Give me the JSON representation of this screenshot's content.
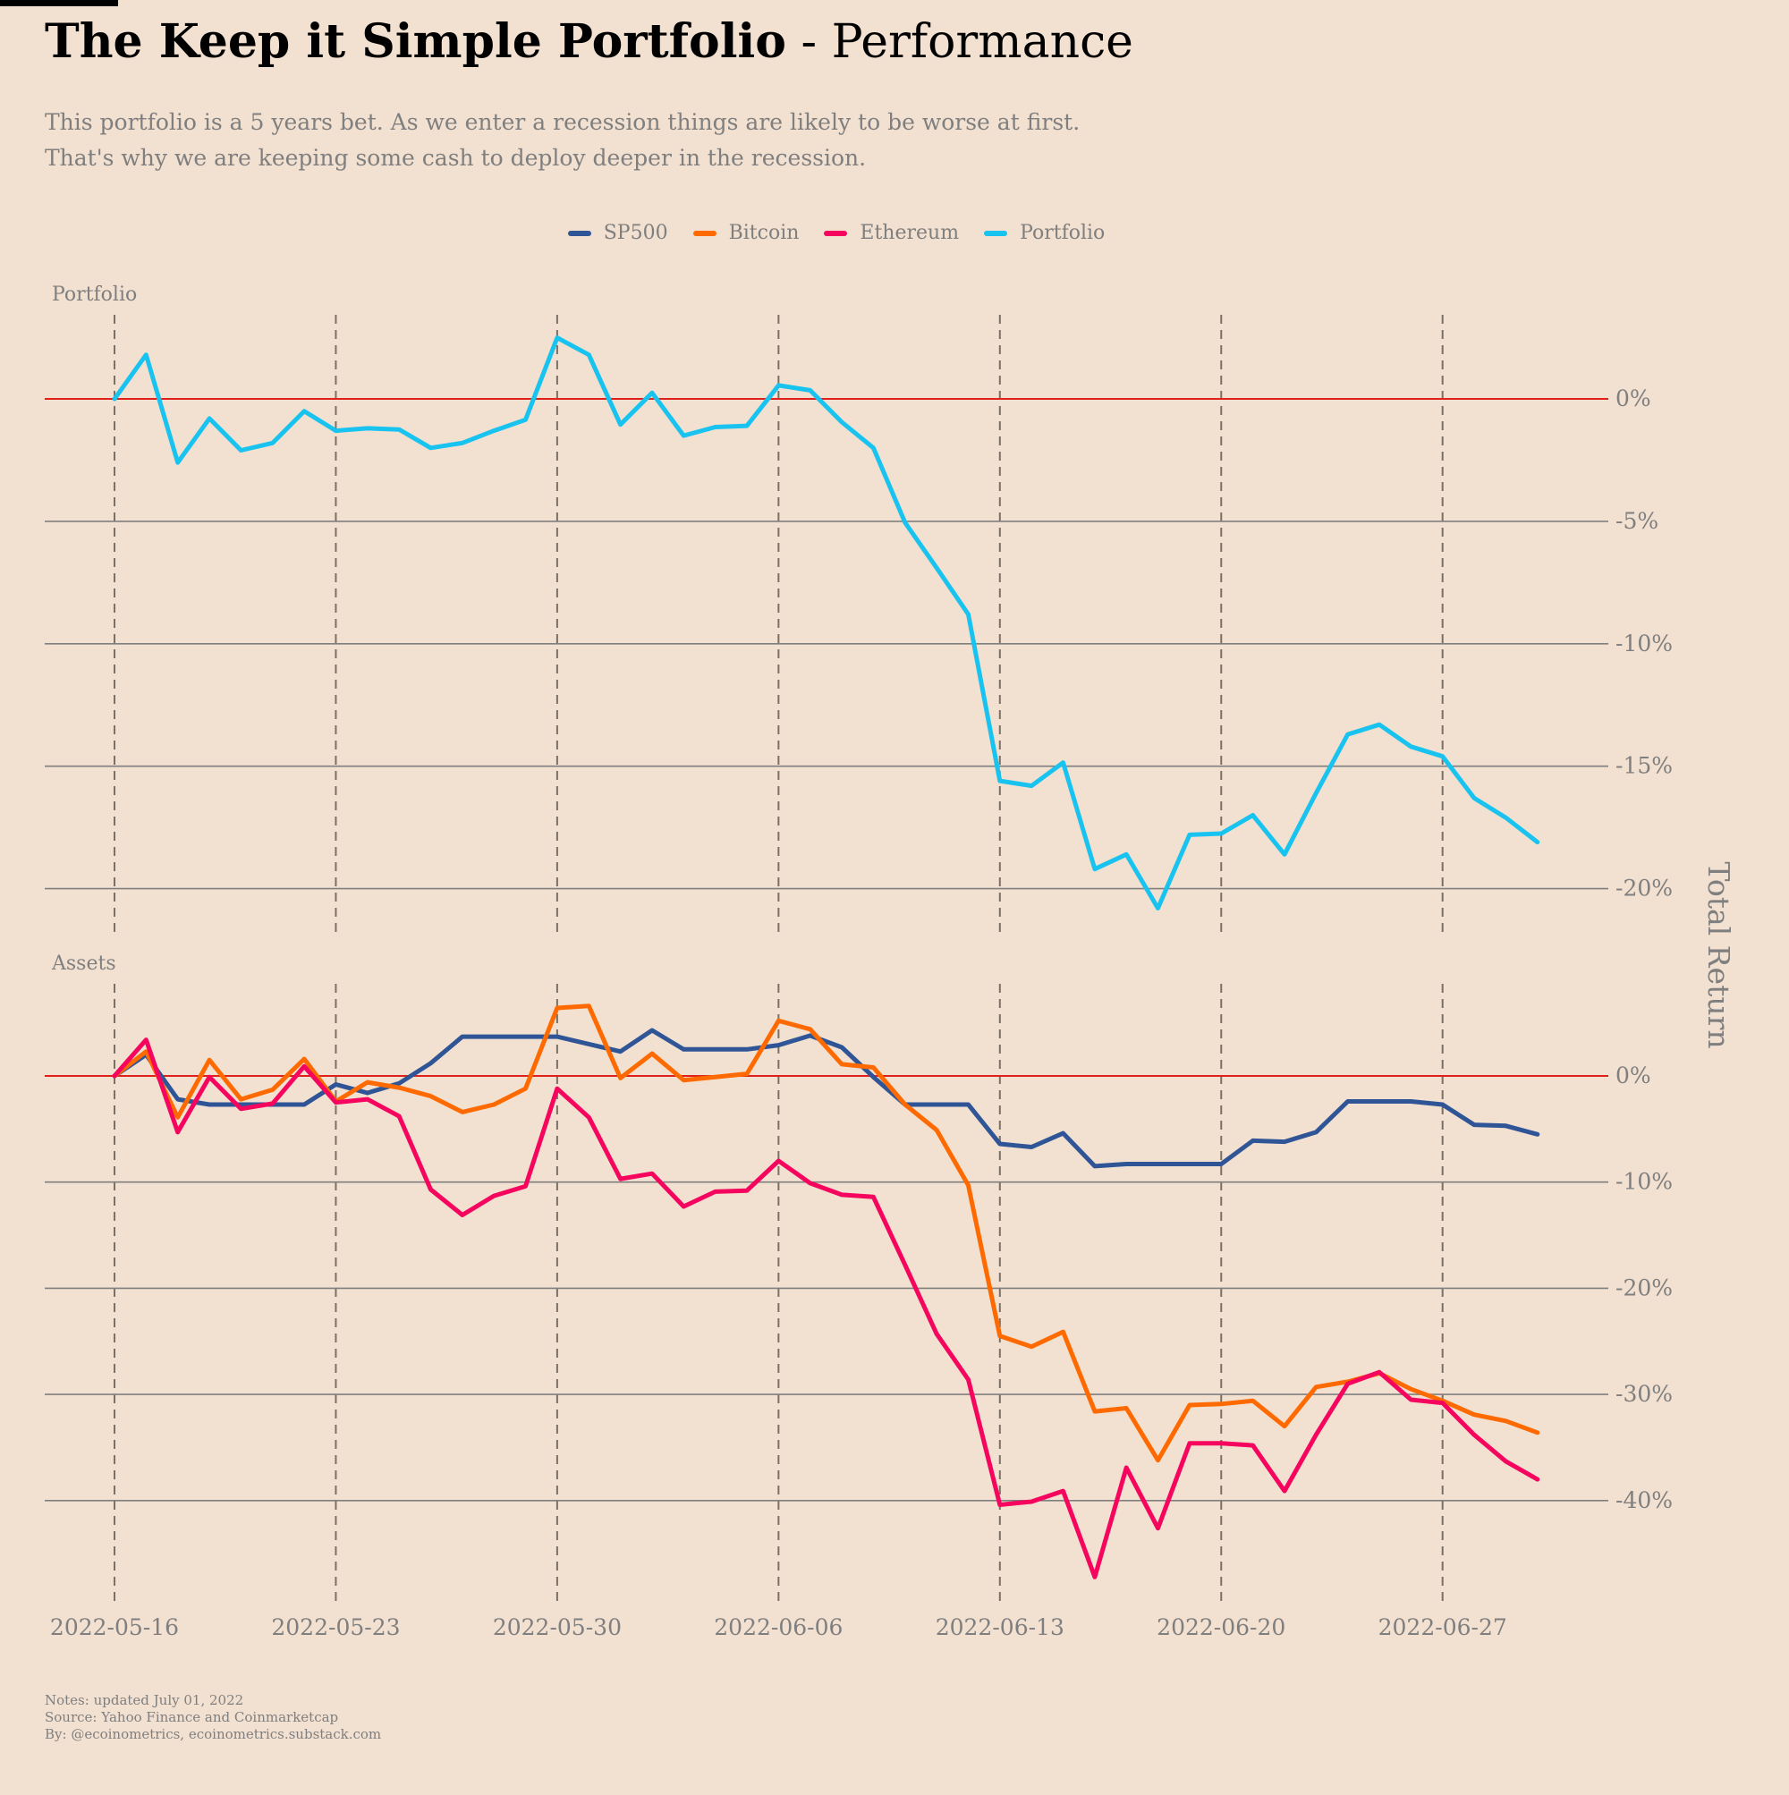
{
  "header": {
    "title_bold": "The Keep it Simple Portfolio",
    "title_rest": "- Performance",
    "subtitle_lines": [
      "This portfolio is a 5 years bet. As we enter a recession things are likely to be worse at first.",
      "That's why we are keeping some cash to deploy deeper in the recession."
    ]
  },
  "footer": {
    "lines": [
      "Notes: updated July 01, 2022",
      "Source: Yahoo Finance and Coinmarketcap",
      "By: @ecoinometrics, ecoinometrics.substack.com"
    ]
  },
  "colors": {
    "background": "#f2e0d0",
    "SP500": "#2f5597",
    "Bitcoin": "#ff6a00",
    "Ethereum": "#f5055e",
    "Portfolio": "#19c3f0",
    "zero_line": "#e0201a",
    "grid": "#7f7f7f"
  },
  "chart_data": {
    "type": "line",
    "legend": [
      "SP500",
      "Bitcoin",
      "Ethereum",
      "Portfolio"
    ],
    "legend_position": "top-center",
    "ylabel": "Total Return",
    "x_tick_labels": [
      "2022-05-16",
      "2022-05-23",
      "2022-05-30",
      "2022-06-06",
      "2022-06-13",
      "2022-06-20",
      "2022-06-27"
    ],
    "x_start_date": "2022-05-16",
    "x_day_offsets": [
      0,
      1,
      2,
      3,
      4,
      5,
      6,
      7,
      8,
      9,
      10,
      11,
      12,
      13,
      14,
      15,
      16,
      17,
      18,
      19,
      20,
      21,
      22,
      23,
      24,
      25,
      26,
      27,
      28,
      29,
      30,
      31,
      32,
      33,
      34,
      35,
      36,
      37,
      38,
      39,
      40,
      41,
      42,
      43,
      44,
      45
    ],
    "panels": [
      {
        "label": "Portfolio",
        "ylim": [
          -21.5,
          3.1
        ],
        "yticks": [
          0,
          -5,
          -10,
          -15,
          -20
        ],
        "ytick_labels": [
          "0%",
          "-5%",
          "-10%",
          "-15%",
          "-20%"
        ],
        "series": [
          {
            "name": "Portfolio",
            "values": [
              0,
              1.8,
              -2.6,
              -0.8,
              -2.1,
              -1.8,
              -0.5,
              -1.3,
              -1.2,
              -1.25,
              -2.0,
              -1.8,
              -1.3,
              -0.85,
              2.5,
              1.8,
              -1.05,
              0.25,
              -1.5,
              -1.15,
              -1.1,
              0.55,
              0.35,
              -0.95,
              -2.0,
              -5.05,
              -6.9,
              -8.8,
              -15.6,
              -15.8,
              -14.85,
              -19.2,
              -18.6,
              -20.8,
              -17.8,
              -17.75,
              -17.0,
              -18.6,
              -16.1,
              -13.7,
              -13.3,
              -14.2,
              -14.6,
              -16.3,
              -17.1,
              -18.1
            ]
          }
        ]
      },
      {
        "label": "Assets",
        "ylim": [
          -49.5,
          8.5
        ],
        "yticks": [
          0,
          -10,
          -20,
          -30,
          -40
        ],
        "ytick_labels": [
          "0%",
          "-10%",
          "-20%",
          "-30%",
          "-40%"
        ],
        "series": [
          {
            "name": "SP500",
            "values": [
              0,
              2.0,
              -2.2,
              -2.7,
              -2.7,
              -2.7,
              -2.7,
              -0.8,
              -1.6,
              -0.7,
              1.2,
              3.7,
              3.7,
              3.7,
              3.7,
              3.0,
              2.3,
              4.3,
              2.5,
              2.5,
              2.5,
              2.9,
              3.8,
              2.7,
              -0.1,
              -2.7,
              -2.7,
              -2.7,
              -6.4,
              -6.7,
              -5.4,
              -8.5,
              -8.3,
              -8.3,
              -8.3,
              -8.3,
              -6.1,
              -6.2,
              -5.3,
              -2.4,
              -2.4,
              -2.4,
              -2.7,
              -4.6,
              -4.7,
              -5.5
            ]
          },
          {
            "name": "Bitcoin",
            "values": [
              0,
              2.3,
              -3.9,
              1.5,
              -2.2,
              -1.3,
              1.6,
              -2.4,
              -0.6,
              -1.1,
              -1.9,
              -3.4,
              -2.7,
              -1.2,
              6.4,
              6.6,
              -0.2,
              2.1,
              -0.4,
              -0.1,
              0.2,
              5.2,
              4.4,
              1.1,
              0.8,
              -2.7,
              -5.1,
              -10.3,
              -24.5,
              -25.5,
              -24.1,
              -31.6,
              -31.3,
              -36.2,
              -31.0,
              -30.9,
              -30.6,
              -33.0,
              -29.3,
              -28.8,
              -28.0,
              -29.5,
              -30.6,
              -31.9,
              -32.5,
              -33.6
            ]
          },
          {
            "name": "Ethereum",
            "values": [
              0,
              3.4,
              -5.3,
              -0.1,
              -3.1,
              -2.6,
              0.9,
              -2.5,
              -2.2,
              -3.8,
              -10.7,
              -13.1,
              -11.3,
              -10.4,
              -1.2,
              -3.9,
              -9.7,
              -9.2,
              -12.3,
              -10.9,
              -10.8,
              -8.0,
              -10.1,
              -11.2,
              -11.4,
              -17.8,
              -24.3,
              -28.6,
              -40.4,
              -40.1,
              -39.1,
              -47.2,
              -36.9,
              -42.6,
              -34.6,
              -34.6,
              -34.8,
              -39.1,
              -33.8,
              -29.0,
              -27.9,
              -30.5,
              -30.8,
              -33.8,
              -36.3,
              -38.0
            ]
          }
        ]
      }
    ]
  }
}
